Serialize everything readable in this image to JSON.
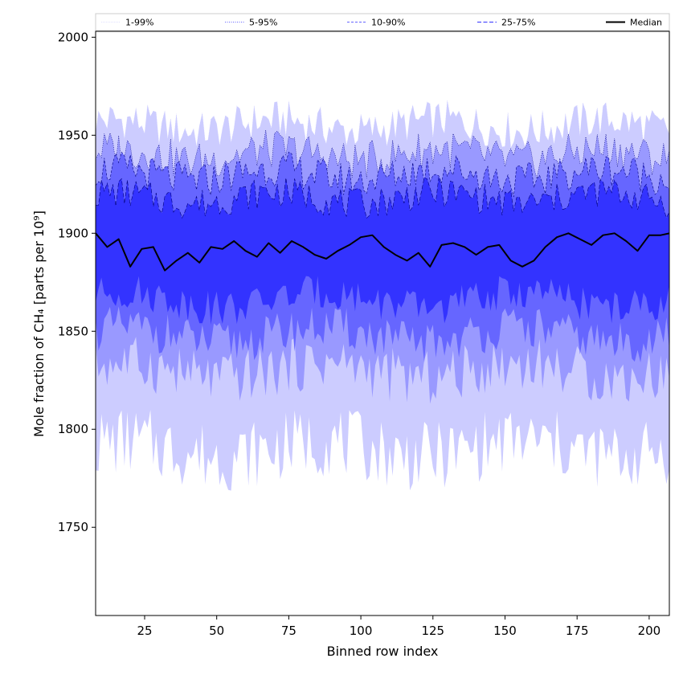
{
  "chart_data": {
    "type": "area",
    "title": "",
    "xlabel": "Binned row index",
    "ylabel": "Mole fraction of CH₄ [parts per 10⁹]",
    "xlim": [
      8,
      207
    ],
    "ylim": [
      1705,
      2003
    ],
    "x_ticks": [
      25,
      50,
      75,
      100,
      125,
      150,
      175,
      200
    ],
    "y_ticks": [
      1750,
      1800,
      1850,
      1900,
      1950,
      2000
    ],
    "grid": false,
    "legend_position": "top (above plot)",
    "bands": [
      {
        "name": "1-99%",
        "color": "#ccccff",
        "line_color": "#ccccff",
        "dash": "0.6,1.4",
        "lower_base": 1790,
        "upper_base": 1955,
        "lower_amp": 18,
        "upper_amp": 10
      },
      {
        "name": "5-95%",
        "color": "#9999ff",
        "line_color": "#000080",
        "dash": "1,1.5",
        "lower_base": 1830,
        "upper_base": 1940,
        "lower_amp": 14,
        "upper_amp": 10
      },
      {
        "name": "10-90%",
        "color": "#6666ff",
        "line_color": "#000080",
        "dash": "3,2",
        "lower_base": 1848,
        "upper_base": 1930,
        "lower_amp": 11,
        "upper_amp": 9
      },
      {
        "name": "25-75%",
        "color": "#3333ff",
        "line_color": "#000080",
        "dash": "5,2.5",
        "lower_base": 1866,
        "upper_base": 1918,
        "lower_amp": 9,
        "upper_amp": 8
      }
    ],
    "legend_line_colors": {
      "1-99%": "#ccccff",
      "5-95%": "#6666ff",
      "10-90%": "#6666ff",
      "25-75%": "#3333ff"
    },
    "median": {
      "name": "Median",
      "color": "#000000",
      "x": [
        8,
        12,
        16,
        20,
        24,
        28,
        32,
        36,
        40,
        44,
        48,
        52,
        56,
        60,
        64,
        68,
        72,
        76,
        80,
        84,
        88,
        92,
        96,
        100,
        104,
        108,
        112,
        116,
        120,
        124,
        128,
        132,
        136,
        140,
        144,
        148,
        152,
        156,
        160,
        164,
        168,
        172,
        176,
        180,
        184,
        188,
        192,
        196,
        200,
        204,
        207
      ],
      "y": [
        1900,
        1893,
        1897,
        1883,
        1892,
        1893,
        1881,
        1886,
        1890,
        1885,
        1893,
        1892,
        1896,
        1891,
        1888,
        1895,
        1890,
        1896,
        1893,
        1889,
        1887,
        1891,
        1894,
        1898,
        1899,
        1893,
        1889,
        1886,
        1890,
        1883,
        1894,
        1895,
        1893,
        1889,
        1893,
        1894,
        1886,
        1883,
        1886,
        1893,
        1898,
        1900,
        1897,
        1894,
        1899,
        1900,
        1896,
        1891,
        1899,
        1899,
        1900
      ]
    }
  }
}
